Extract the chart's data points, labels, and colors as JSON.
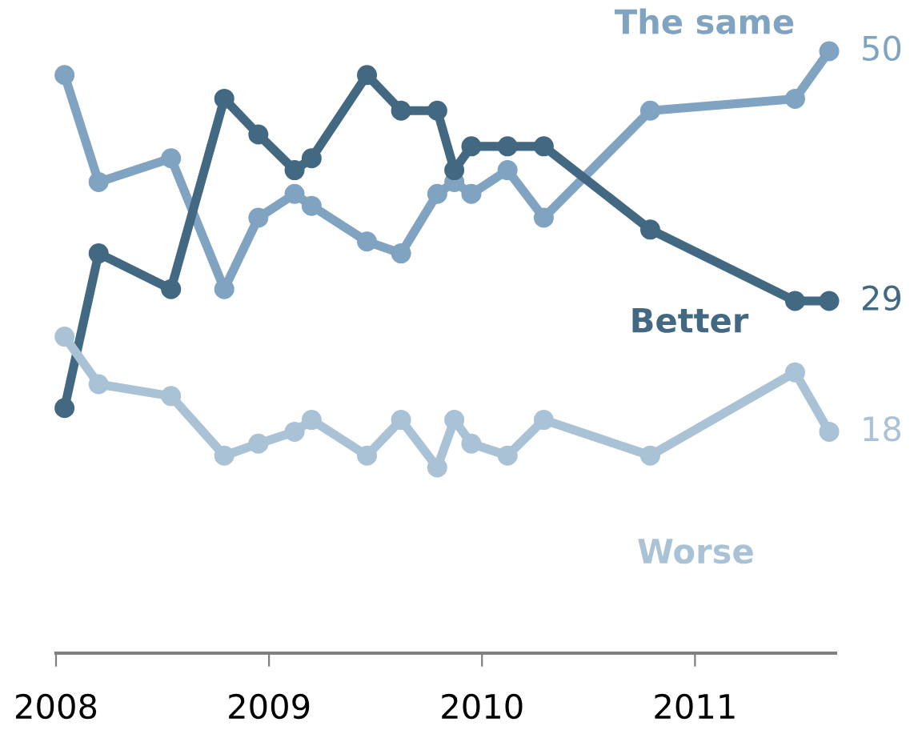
{
  "chart_data": {
    "type": "line",
    "x": [
      2008.04,
      2008.2,
      2008.54,
      2008.79,
      2008.95,
      2009.12,
      2009.2,
      2009.46,
      2009.62,
      2009.79,
      2009.87,
      2009.95,
      2010.12,
      2010.29,
      2010.79,
      2011.47,
      2011.63
    ],
    "series": [
      {
        "name": "The same",
        "color": "#7fa3c0",
        "values": [
          48,
          39,
          41,
          30,
          36,
          38,
          37,
          34,
          33,
          38,
          39,
          38,
          40,
          36,
          45,
          46,
          50
        ],
        "value_labels": [
          null,
          null,
          null,
          null,
          null,
          null,
          null,
          null,
          null,
          null,
          null,
          null,
          null,
          null,
          null,
          null,
          "50"
        ]
      },
      {
        "name": "Better",
        "color": "#426882",
        "values": [
          20,
          33,
          30,
          46,
          43,
          40,
          41,
          48,
          45,
          45,
          40,
          42,
          42,
          42,
          35,
          29,
          29
        ],
        "value_labels": [
          null,
          null,
          null,
          null,
          null,
          null,
          null,
          null,
          null,
          null,
          null,
          null,
          null,
          null,
          null,
          null,
          "29"
        ]
      },
      {
        "name": "Worse",
        "color": "#a9c2d6",
        "values": [
          26,
          22,
          21,
          16,
          17,
          18,
          19,
          16,
          19,
          15,
          19,
          17,
          16,
          19,
          16,
          23,
          18
        ],
        "value_labels": [
          null,
          null,
          null,
          null,
          null,
          null,
          null,
          null,
          null,
          null,
          null,
          null,
          null,
          null,
          null,
          null,
          "18"
        ]
      }
    ],
    "xlim": [
      2008,
      2011.66
    ],
    "xticks": [
      2008,
      2009,
      2010,
      2011
    ],
    "tick_labels": "x",
    "marker": "circle",
    "line_style": "solid",
    "grid": false,
    "legend": false
  }
}
